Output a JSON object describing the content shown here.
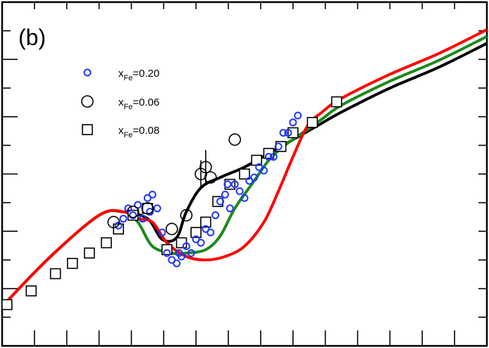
{
  "chart_data": {
    "type": "scatter",
    "panel_label": "(b)",
    "title": "",
    "xlabel": "",
    "ylabel": "",
    "xlim": [
      0,
      100
    ],
    "ylim": [
      0,
      100
    ],
    "grid": false,
    "legend_position": "top-left",
    "legend": [
      {
        "prefix": "x",
        "sub": "Fe",
        "suffix": "=0.20",
        "marker": "small-circle",
        "color": "#1f35ff"
      },
      {
        "prefix": "x",
        "sub": "Fe",
        "suffix": "=0.06",
        "marker": "large-circle",
        "color": "#000000"
      },
      {
        "prefix": "x",
        "sub": "Fe",
        "suffix": "=0.08",
        "marker": "square",
        "color": "#000000"
      }
    ],
    "curves": [
      {
        "color": "#000000",
        "x": [
          0,
          10,
          20,
          25,
          30,
          33,
          36,
          38,
          41,
          45,
          50,
          55,
          60,
          65,
          70,
          80,
          90,
          100
        ],
        "y": [
          11.5,
          26,
          38,
          39,
          37,
          31,
          31.5,
          39,
          46,
          49,
          52,
          56,
          60,
          64,
          68,
          75,
          81,
          88
        ]
      },
      {
        "color": "#1a8a1a",
        "x": [
          0,
          10,
          20,
          25,
          28,
          31,
          35,
          38,
          42,
          45,
          48,
          52,
          55,
          58,
          62,
          66,
          70,
          80,
          90,
          100
        ],
        "y": [
          11.5,
          26,
          38,
          39,
          36,
          29,
          27,
          27,
          28,
          32,
          40,
          48,
          54,
          58,
          62,
          66,
          70,
          77,
          83,
          90
        ]
      },
      {
        "color": "#ff0000",
        "x": [
          0,
          10,
          20,
          25,
          28,
          31,
          34,
          38,
          42,
          46,
          50,
          54,
          57,
          60,
          63,
          66,
          70,
          80,
          90,
          100
        ],
        "y": [
          11.5,
          26,
          38,
          39,
          37,
          36,
          30,
          26,
          25,
          26,
          29,
          36,
          45,
          55,
          64,
          68,
          72,
          79,
          85,
          92
        ]
      }
    ],
    "series": [
      {
        "name": "xFe=0.20",
        "marker": "small-circle",
        "color": "#1f35ff",
        "x": [
          24,
          25,
          26,
          27,
          28,
          29,
          30,
          30.5,
          31,
          32,
          33,
          34,
          35,
          36,
          36.5,
          37,
          38,
          39,
          40,
          41,
          42,
          43,
          44,
          45,
          46,
          46.5,
          47,
          48,
          49,
          50,
          51,
          52,
          53,
          54,
          55,
          56,
          57,
          58,
          59,
          60,
          61
        ],
        "y": [
          35,
          37,
          40,
          38,
          41,
          37,
          43,
          39,
          44,
          40,
          33,
          27,
          25,
          24,
          27,
          26,
          29,
          27,
          31,
          30,
          34,
          33,
          38,
          42,
          44,
          47,
          40,
          47,
          45,
          43,
          48,
          49,
          52,
          51,
          55,
          55,
          58,
          62,
          62,
          65,
          67
        ]
      },
      {
        "name": "xFe=0.06",
        "marker": "large-circle",
        "color": "#000000",
        "x": [
          23,
          27,
          30,
          35,
          38,
          41,
          42,
          43,
          48
        ],
        "y": [
          36,
          39,
          40,
          34,
          38,
          50,
          52,
          49,
          60
        ]
      },
      {
        "name": "xFe=0.08",
        "marker": "square",
        "color": "#000000",
        "x": [
          1,
          6,
          11,
          14.5,
          18,
          21.5,
          24,
          27,
          30,
          34,
          37,
          40,
          42,
          44.5,
          47,
          50,
          52.5,
          55,
          57.5,
          60,
          64,
          69
        ],
        "y": [
          12,
          16,
          21,
          24,
          27,
          30,
          34,
          38,
          40,
          28,
          30,
          33,
          36,
          42,
          47,
          50,
          54,
          56,
          58,
          62,
          65,
          71
        ]
      }
    ],
    "error_bars": [
      {
        "x": 41,
        "y": 50,
        "dy": 4
      },
      {
        "x": 42,
        "y": 52,
        "dy": 5
      }
    ]
  }
}
